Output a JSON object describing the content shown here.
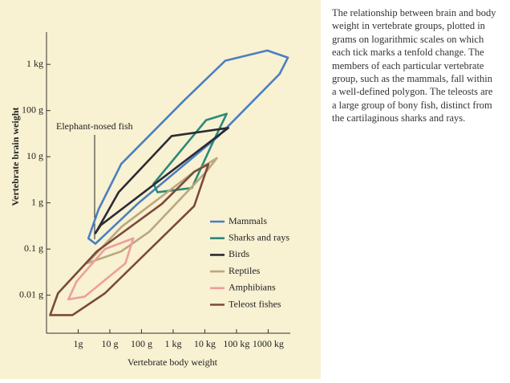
{
  "chart_data": {
    "type": "polygon",
    "xlabel": "Vertebrate body weight",
    "ylabel": "Vertebrate brain weight",
    "annotation": "Elephant-nosed fish",
    "xscale": "log",
    "yscale": "log",
    "xlim": [
      0.1,
      5000000
    ],
    "ylim": [
      0.0015,
      5000
    ],
    "xticks": [
      {
        "value": 1,
        "label": "1g"
      },
      {
        "value": 10,
        "label": "10 g"
      },
      {
        "value": 100,
        "label": "100 g"
      },
      {
        "value": 1000,
        "label": "1 kg"
      },
      {
        "value": 10000,
        "label": "10 kg"
      },
      {
        "value": 100000,
        "label": "100 kg"
      },
      {
        "value": 1000000,
        "label": "1000 kg"
      }
    ],
    "yticks": [
      {
        "value": 0.01,
        "label": "0.01 g"
      },
      {
        "value": 0.1,
        "label": "0.1 g"
      },
      {
        "value": 1,
        "label": "1 g"
      },
      {
        "value": 10,
        "label": "10 g"
      },
      {
        "value": 100,
        "label": "100 g"
      },
      {
        "value": 1000,
        "label": "1 kg"
      }
    ],
    "series": [
      {
        "name": "Mammals",
        "color": "#4a7fc1",
        "x": [
          2.1,
          4.4,
          23,
          2300,
          44000,
          940000,
          4200000,
          2300000,
          27000,
          75,
          3.5
        ],
        "y": [
          0.17,
          0.72,
          7,
          170,
          1200,
          2000,
          1400,
          620,
          28,
          0.95,
          0.13
        ]
      },
      {
        "name": "Sharks and rays",
        "color": "#2a8a78",
        "x": [
          240,
          11000,
          49000,
          17000,
          3900,
          320
        ],
        "y": [
          2.6,
          62,
          85,
          19,
          2.1,
          1.7
        ]
      },
      {
        "name": "Birds",
        "color": "#2b2b33",
        "x": [
          3.5,
          19,
          890,
          55000,
          5.2
        ],
        "y": [
          0.22,
          1.7,
          28,
          42,
          0.33
        ]
      },
      {
        "name": "Reptiles",
        "color": "#bba77f",
        "x": [
          1.9,
          23,
          4600,
          24000,
          11000,
          180,
          23
        ],
        "y": [
          0.049,
          0.3,
          4.7,
          9.3,
          4.7,
          0.24,
          0.089
        ]
      },
      {
        "name": "Amphibians",
        "color": "#ec9f9c",
        "x": [
          0.49,
          0.9,
          7,
          55,
          31,
          1.6
        ],
        "y": [
          0.0081,
          0.02,
          0.1,
          0.17,
          0.049,
          0.0093
        ]
      },
      {
        "name": "Teleost fishes",
        "color": "#7a4a3a",
        "x": [
          0.13,
          0.23,
          3.9,
          440,
          4600,
          13000,
          4600,
          7,
          0.66
        ],
        "y": [
          0.0037,
          0.011,
          0.089,
          0.95,
          4.7,
          6.9,
          0.85,
          0.011,
          0.0037
        ]
      }
    ]
  },
  "caption": [
    "The relationship between brain and body",
    "weight in vertebrate groups, plotted in",
    "grams on logarithmic scales on which",
    "each tick marks a tenfold change. The",
    "members of each particular vertebrate",
    "group, such as the mammals, fall within",
    "a well-defined polygon. The teleosts are",
    "a large group of bony fish, distinct from",
    "the cartilaginous sharks and rays."
  ]
}
